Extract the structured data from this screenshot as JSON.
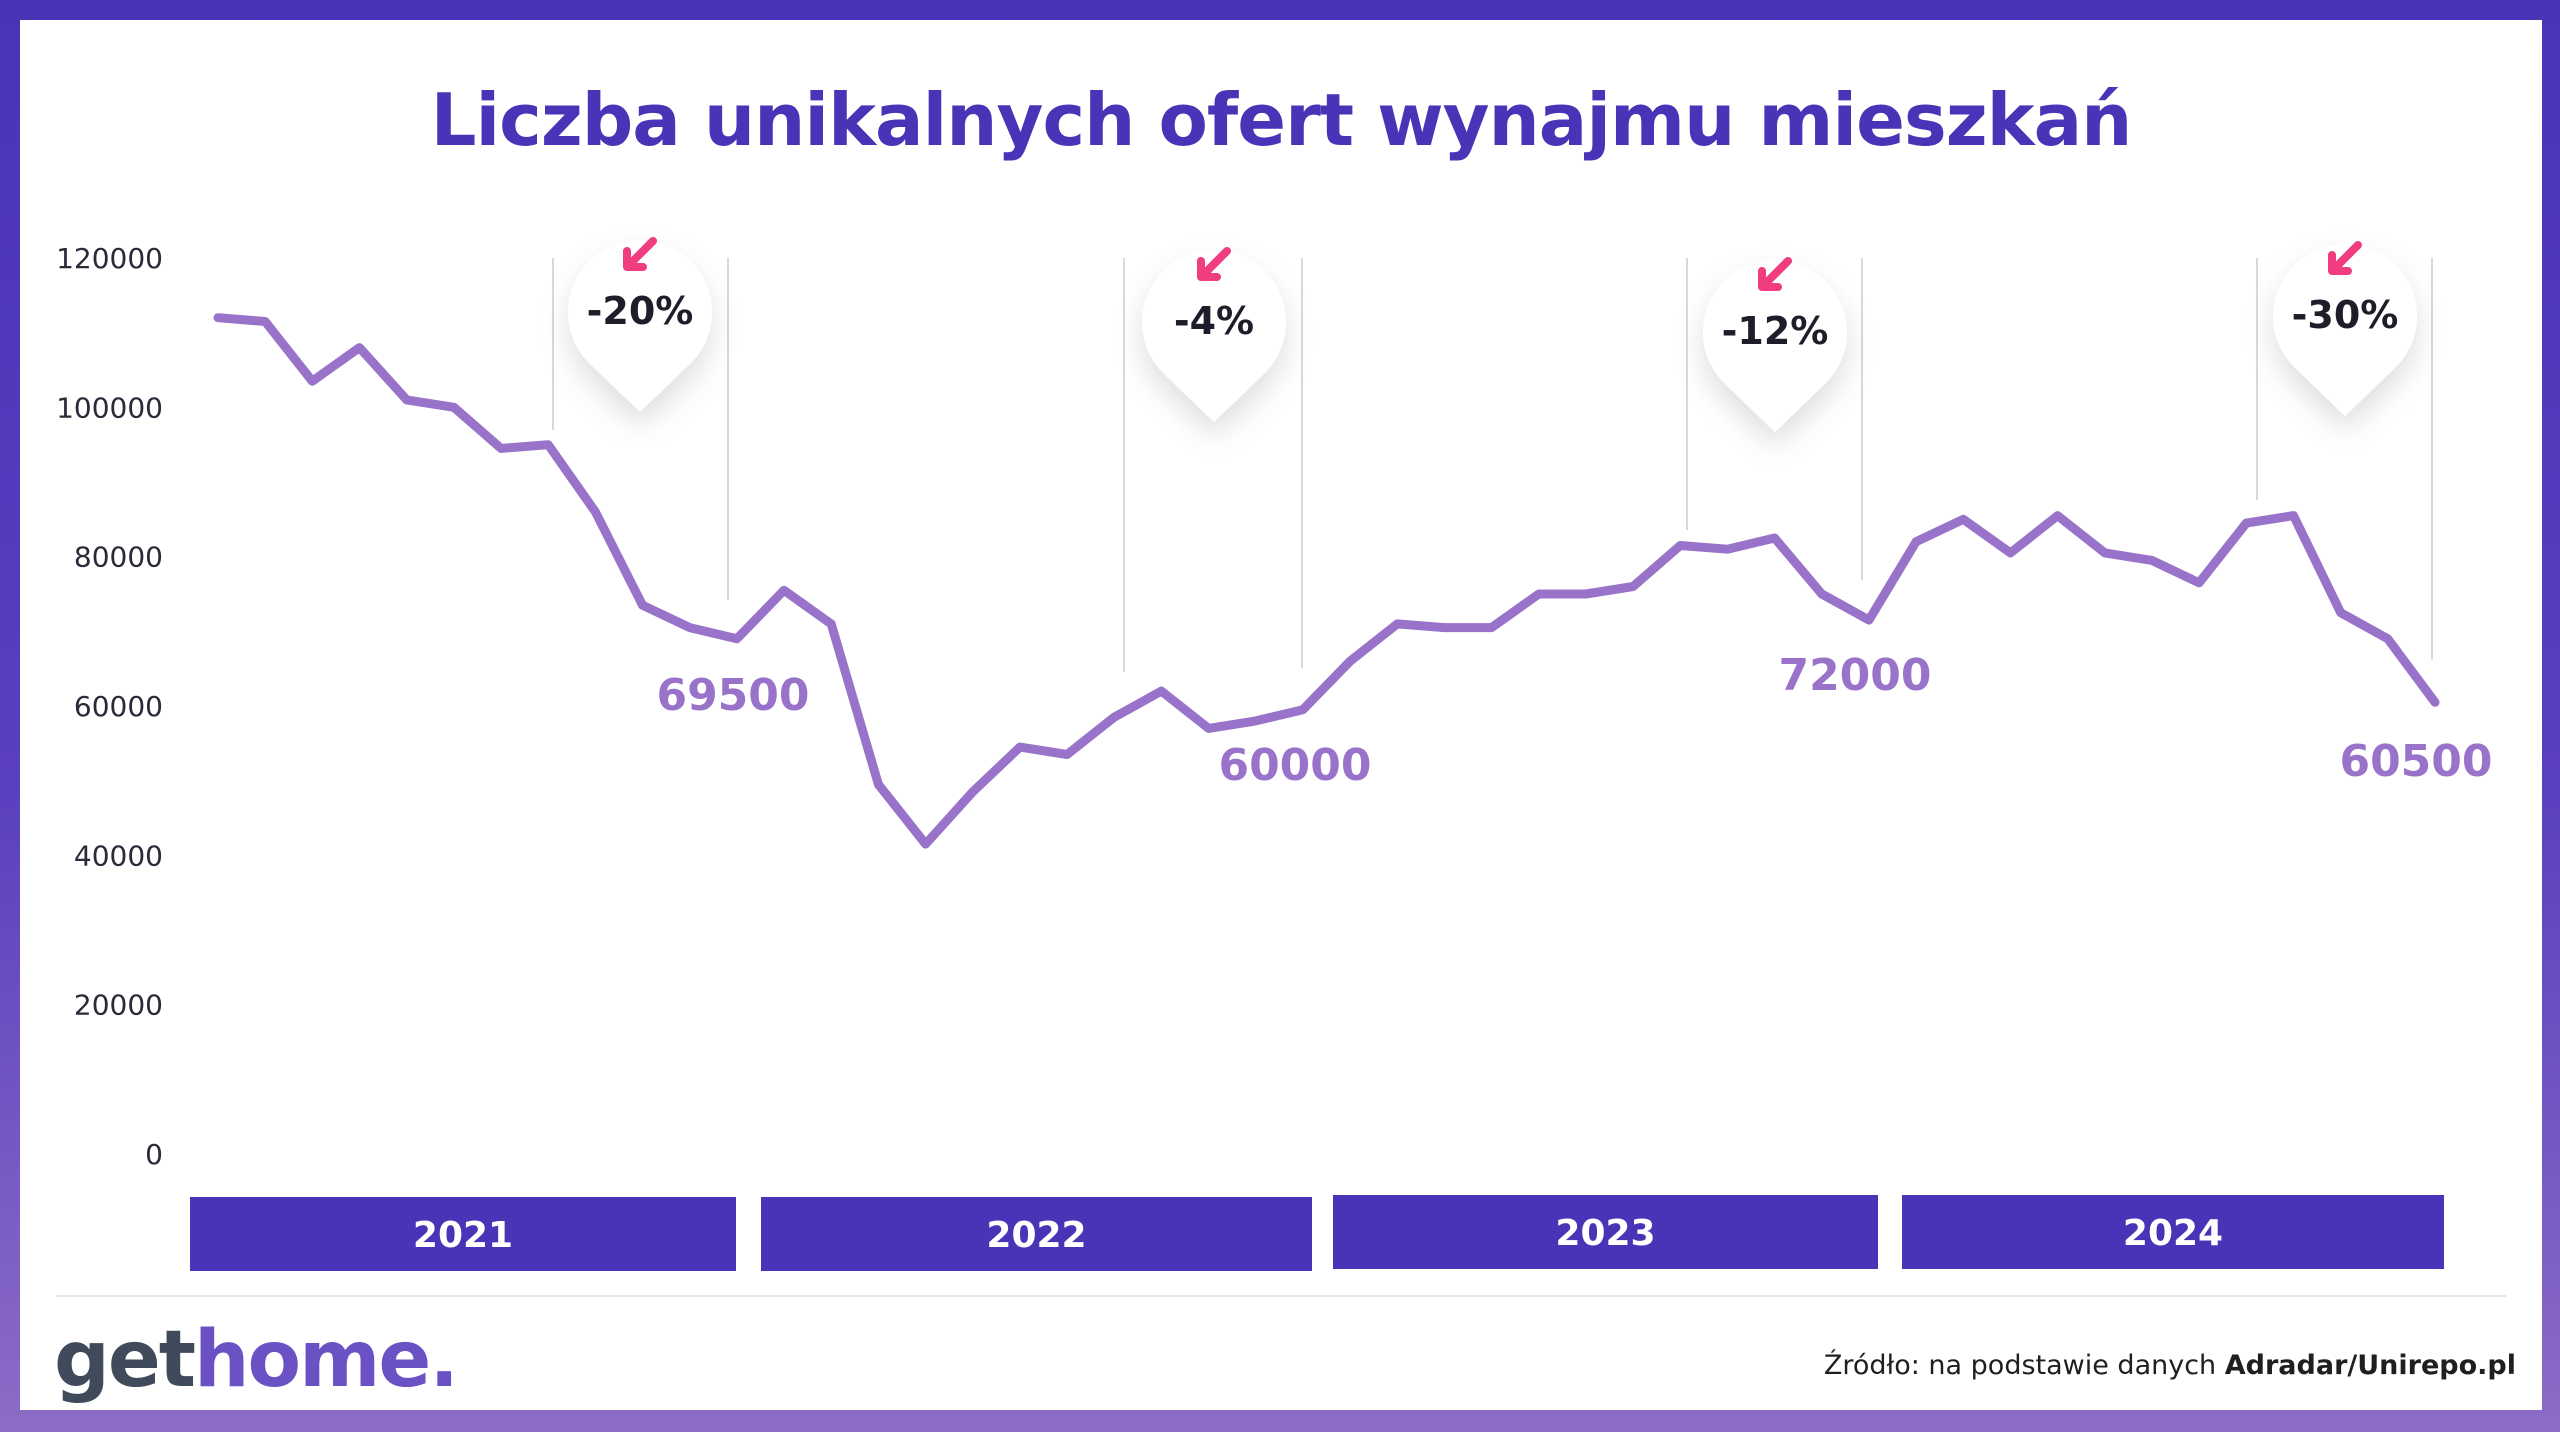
{
  "title": "Liczba unikalnych ofert wynajmu mieszkań",
  "logo": {
    "part1": "get",
    "part2": "home."
  },
  "source": {
    "prefix": "Źródło: na podstawie danych ",
    "bold": "Adradar/Unirepo.pl"
  },
  "colors": {
    "line": "#9873c9",
    "accent": "#4a33b6",
    "badge_arrow": "#ef3d7f",
    "value_label": "#9873c9"
  },
  "chart_data": {
    "type": "line",
    "title": "Liczba unikalnych ofert wynajmu mieszkań",
    "xlabel": "",
    "ylabel": "",
    "ylim": [
      0,
      120000
    ],
    "yticks": [
      "0",
      "20000",
      "40000",
      "60000",
      "80000",
      "100000",
      "120000"
    ],
    "years": [
      "2021",
      "2022",
      "2023",
      "2024"
    ],
    "grid": false,
    "series": [
      {
        "values": [
          112000,
          111500,
          103500,
          108000,
          101000,
          100000,
          94500,
          95000,
          86000,
          73500,
          70500,
          69000,
          75500,
          71000,
          49500,
          41500,
          48500,
          54500,
          53500,
          58500,
          62000,
          57000,
          58000,
          59500,
          66000,
          71000,
          70500,
          70500,
          75000,
          75000,
          76000,
          81500,
          81000,
          82500,
          75000,
          71500,
          82000,
          85000,
          80500,
          85500,
          80500,
          79500,
          76500,
          84500,
          85500,
          72500,
          69000,
          60500
        ]
      }
    ],
    "annotations": [
      {
        "year": "2021",
        "change": "-20%",
        "value": "69500"
      },
      {
        "year": "2022",
        "change": "-4%",
        "value": "60000"
      },
      {
        "year": "2023",
        "change": "-12%",
        "value": "72000"
      },
      {
        "year": "2024",
        "change": "-30%",
        "value": "60500"
      }
    ]
  }
}
